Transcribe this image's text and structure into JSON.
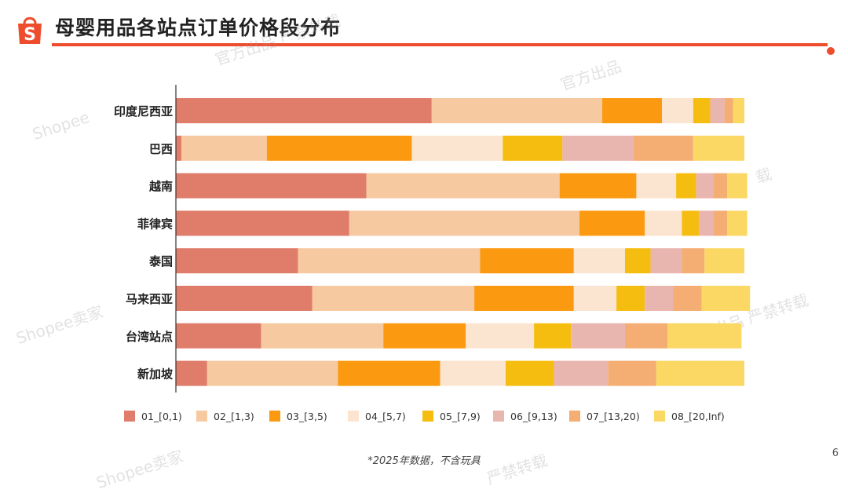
{
  "header": {
    "title": "母婴用品各站点订单价格段分布",
    "brand_color": "#ee4d2d"
  },
  "watermarks": [
    "Shopee",
    "Shopee卖家",
    "官方出品 严禁转载",
    "官方出品",
    "出品 严禁转载",
    "载",
    "严禁转载",
    "Shopee卖家"
  ],
  "footnote": "*2025年数据，不含玩具",
  "page_number": "6",
  "chart_data": {
    "type": "bar",
    "orientation": "horizontal",
    "stacked": true,
    "normalized": true,
    "xlim": [
      0,
      100
    ],
    "categories": [
      "印度尼西亚",
      "巴西",
      "越南",
      "菲律宾",
      "泰国",
      "马来西亚",
      "台湾站点",
      "新加坡"
    ],
    "series": [
      {
        "name": "01_[0,1)",
        "color": "#e07d6a",
        "values": [
          45,
          1,
          33.5,
          30.5,
          21.5,
          24,
          15,
          5.5
        ]
      },
      {
        "name": "02_[1,3)",
        "color": "#f6c9a0",
        "values": [
          30,
          15,
          34,
          40.5,
          32,
          28.5,
          21.5,
          23
        ]
      },
      {
        "name": "03_[3,5)",
        "color": "#fb9a11",
        "values": [
          10.5,
          25.5,
          13.5,
          11.5,
          16.5,
          17.5,
          14.5,
          18
        ]
      },
      {
        "name": "04_[5,7)",
        "color": "#fce5d0",
        "values": [
          5.5,
          16,
          7,
          6.5,
          9,
          7.5,
          12,
          11.5
        ]
      },
      {
        "name": "05_[7,9)",
        "color": "#f6bd11",
        "values": [
          3,
          10.5,
          3.5,
          3,
          4.5,
          5,
          6.5,
          8.5
        ]
      },
      {
        "name": "06_[9,13)",
        "color": "#e9b5af",
        "values": [
          2.5,
          12.5,
          3,
          2.5,
          5.5,
          5,
          9.5,
          9.5
        ]
      },
      {
        "name": "07_[13,20)",
        "color": "#f4ad73",
        "values": [
          1.5,
          10.5,
          2.5,
          2.5,
          4,
          5,
          7.5,
          8.5
        ]
      },
      {
        "name": "08_[20,Inf)",
        "color": "#fbd764",
        "values": [
          2,
          9,
          3.5,
          3.5,
          7,
          8.5,
          13,
          15.5
        ]
      }
    ]
  }
}
